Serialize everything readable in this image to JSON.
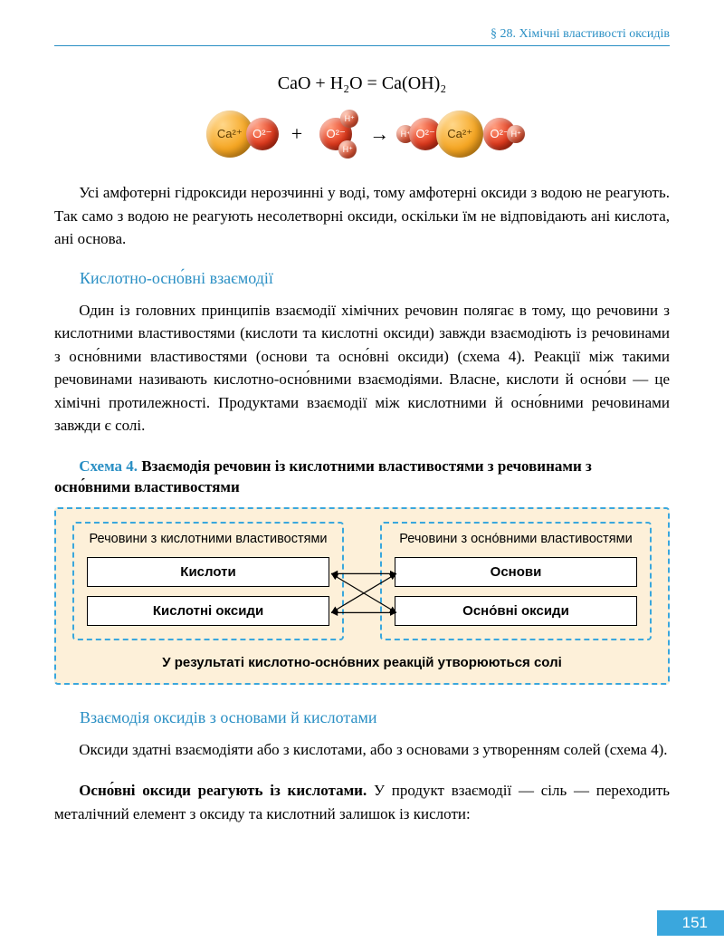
{
  "header": "§ 28. Хімічні властивості оксидів",
  "equation": "CaO + H₂O = Ca(OH)₂",
  "ions": {
    "ca": "Ca²⁺",
    "o": "O²⁻",
    "h": "H⁺",
    "plus": "+",
    "arrow": "→"
  },
  "para1": "Усі амфотерні гідроксиди нерозчинні у воді, тому амфотерні оксиди з водою не реагують. Так само з водою не реагують несолетворні оксиди, оскільки їм не відповідають ані кислота, ані основа.",
  "heading1": "Кислотно-осно́вні взаємодії",
  "para2": "Один із головних принципів взаємодії хімічних речовин полягає в тому, що речовини з кислотними властивостями (кислоти та кислотні оксиди) завжди взаємодіють із речовинами з осно́вними властивостями (основи та осно́вні оксиди) (схема 4). Реакції між такими речовинами називають кислотно-осно́вними взаємодіями. Власне, кислоти й осно́ви — це хімічні протилежності. Продуктами взаємодії між кислотними й осно́вними речовинами завжди є солі.",
  "scheme": {
    "label": "Схема 4.",
    "title": "Взаємодія речовин із кислотними властивостями з речовинами з осно́вними властивостями",
    "left_title": "Речовини з кислотними властивостями",
    "right_title": "Речовини з осно́вними властивостями",
    "left_items": [
      "Кислоти",
      "Кислотні оксиди"
    ],
    "right_items": [
      "Основи",
      "Осно́вні оксиди"
    ],
    "result": "У результаті кислотно-осно́вних реакцій утворюються солі",
    "colors": {
      "bg": "#fdf0d9",
      "dash": "#3aa7dd",
      "box_border": "#000000"
    }
  },
  "heading2": "Взаємодія оксидів з основами й кислотами",
  "para3": "Оксиди здатні взаємодіяти або з кислотами, або з основами з утворенням солей (схема 4).",
  "para4_lead": "Осно́вні оксиди реагують із кислотами.",
  "para4_rest": " У продукт взаємодії — сіль — переходить металічний елемент з оксиду та кислотний залишок із кислоти:",
  "page_number": "151"
}
